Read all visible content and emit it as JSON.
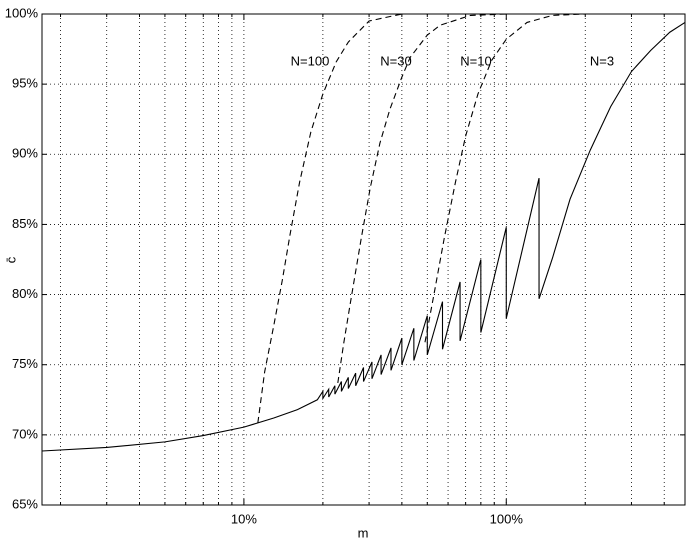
{
  "chart_data": {
    "type": "line",
    "x_label": "m",
    "y_label": "c̄",
    "xscale": "log",
    "grid": true,
    "xlim": [
      1.7,
      480
    ],
    "ylim": [
      65,
      100
    ],
    "xticks": [
      {
        "value": 10,
        "label": "10%"
      },
      {
        "value": 100,
        "label": "100%"
      }
    ],
    "xminorticks": [
      2,
      3,
      4,
      5,
      6,
      7,
      8,
      9,
      20,
      30,
      40,
      50,
      60,
      70,
      80,
      90,
      200,
      300,
      400
    ],
    "yticks": [
      {
        "value": 65,
        "label": "65%"
      },
      {
        "value": 70,
        "label": "70%"
      },
      {
        "value": 75,
        "label": "75%"
      },
      {
        "value": 80,
        "label": "80%"
      },
      {
        "value": 85,
        "label": "85%"
      },
      {
        "value": 90,
        "label": "90%"
      },
      {
        "value": 95,
        "label": "95%"
      },
      {
        "value": 100,
        "label": "100%"
      }
    ],
    "series": [
      {
        "name": "N=100",
        "color": "#000",
        "line_style": "dashed",
        "x": [
          11.3,
          12,
          13,
          14,
          15,
          16.3,
          18,
          20,
          22.5,
          25,
          30,
          40,
          480
        ],
        "values": [
          70.85,
          74.5,
          77.8,
          81.0,
          84.3,
          88.0,
          91.6,
          94.3,
          96.6,
          98.0,
          99.5,
          100,
          100
        ]
      },
      {
        "name": "N=30",
        "color": "#000",
        "line_style": "dashed",
        "x": [
          22.8,
          24,
          25.4,
          28,
          30.3,
          33,
          36,
          40,
          43,
          50,
          56,
          73,
          100,
          480
        ],
        "values": [
          73.7,
          76.5,
          79.3,
          84.0,
          87.6,
          90.8,
          93.2,
          95.5,
          96.9,
          98.5,
          99.2,
          99.9,
          100,
          100
        ]
      },
      {
        "name": "N=10",
        "color": "#000",
        "line_style": "dashed",
        "x": [
          49,
          53,
          58,
          64,
          70,
          78,
          88,
          100,
          120,
          150,
          200,
          480
        ],
        "values": [
          76.6,
          80.0,
          84.0,
          88.0,
          91.3,
          94.3,
          96.7,
          98.2,
          99.4,
          99.9,
          100,
          100
        ]
      },
      {
        "name": "N=3",
        "color": "#000",
        "line_style": "solid",
        "x": [
          1.7,
          3,
          5,
          7,
          10,
          13,
          16,
          19.05,
          20,
          20,
          21.05,
          21.05,
          22.22,
          22.22,
          23.53,
          23.53,
          25,
          25,
          26.67,
          26.67,
          28.57,
          28.57,
          30.77,
          30.77,
          33.33,
          33.33,
          36.36,
          36.36,
          40,
          40,
          44.44,
          44.44,
          50,
          50,
          57.14,
          57.14,
          66.67,
          66.67,
          80,
          80,
          100,
          100,
          133.33,
          133.33,
          150,
          175,
          209,
          250,
          300,
          355,
          420,
          480
        ],
        "values": [
          68.85,
          69.1,
          69.5,
          69.95,
          70.55,
          71.2,
          71.8,
          72.5,
          73.1,
          72.6,
          73.25,
          72.7,
          73.5,
          72.9,
          73.8,
          73.1,
          74.1,
          73.3,
          74.4,
          73.5,
          74.8,
          73.8,
          75.2,
          74.0,
          75.7,
          74.3,
          76.2,
          74.6,
          76.9,
          75.0,
          77.6,
          75.3,
          78.5,
          75.7,
          79.5,
          76.1,
          80.9,
          76.7,
          82.5,
          77.3,
          84.8,
          78.3,
          88.3,
          79.7,
          82.6,
          86.8,
          90.3,
          93.4,
          95.9,
          97.4,
          98.7,
          99.4
        ]
      }
    ]
  }
}
